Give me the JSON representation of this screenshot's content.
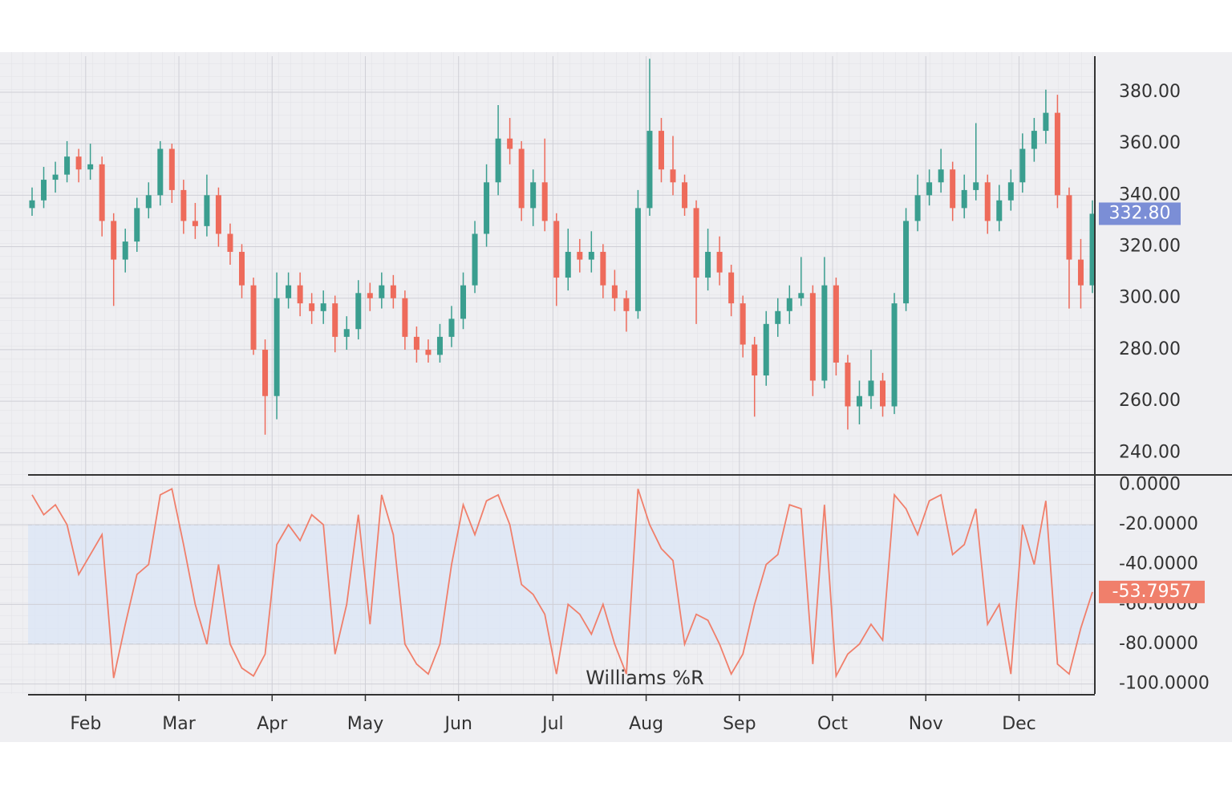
{
  "chart_data": [
    {
      "type": "candlestick",
      "xlim": [
        0,
        91
      ],
      "ylim": [
        232,
        394
      ],
      "yticks": [
        {
          "value": 240,
          "label": "240.00"
        },
        {
          "value": 260,
          "label": "260.00"
        },
        {
          "value": 280,
          "label": "280.00"
        },
        {
          "value": 300,
          "label": "300.00"
        },
        {
          "value": 320,
          "label": "320.00"
        },
        {
          "value": 340,
          "label": "340.00"
        },
        {
          "value": 360,
          "label": "360.00"
        },
        {
          "value": 380,
          "label": "380.00"
        }
      ],
      "up_color": "#3a9e8f",
      "down_color": "#ee6b5b",
      "tag_color": "#7b8ed6",
      "open": [
        335,
        338,
        346,
        348,
        355,
        350,
        352,
        330,
        315,
        322,
        335,
        340,
        358,
        342,
        330,
        328,
        340,
        325,
        318,
        305,
        280,
        262,
        300,
        305,
        298,
        295,
        298,
        285,
        288,
        302,
        300,
        305,
        300,
        285,
        280,
        278,
        285,
        292,
        305,
        325,
        345,
        362,
        358,
        335,
        345,
        330,
        308,
        318,
        315,
        318,
        305,
        300,
        295,
        335,
        365,
        350,
        345,
        335,
        308,
        318,
        310,
        298,
        282,
        270,
        290,
        295,
        300,
        302,
        268,
        305,
        275,
        258,
        262,
        268,
        258,
        298,
        330,
        340,
        345,
        350,
        335,
        342,
        345,
        330,
        338,
        345,
        358,
        365,
        372,
        340,
        315,
        305
      ],
      "high": [
        343,
        351,
        353,
        361,
        358,
        360,
        355,
        333,
        327,
        339,
        345,
        361,
        360,
        346,
        337,
        348,
        343,
        329,
        321,
        308,
        284,
        310,
        310,
        310,
        302,
        303,
        301,
        293,
        307,
        306,
        310,
        309,
        303,
        289,
        284,
        290,
        297,
        310,
        330,
        352,
        375,
        370,
        361,
        350,
        362,
        333,
        327,
        323,
        326,
        321,
        311,
        303,
        342,
        393,
        370,
        363,
        348,
        338,
        327,
        324,
        313,
        301,
        285,
        295,
        300,
        305,
        316,
        305,
        316,
        308,
        278,
        268,
        280,
        271,
        302,
        335,
        348,
        350,
        358,
        353,
        348,
        368,
        348,
        344,
        350,
        364,
        370,
        381,
        379,
        343,
        323,
        338
      ],
      "low": [
        332,
        335,
        341,
        345,
        345,
        346,
        324,
        297,
        310,
        318,
        331,
        336,
        337,
        325,
        323,
        324,
        320,
        313,
        300,
        278,
        247,
        253,
        296,
        293,
        290,
        290,
        279,
        280,
        284,
        295,
        296,
        296,
        280,
        275,
        275,
        275,
        281,
        288,
        302,
        320,
        340,
        352,
        330,
        328,
        326,
        297,
        303,
        310,
        310,
        300,
        295,
        287,
        292,
        332,
        345,
        340,
        332,
        290,
        303,
        305,
        293,
        277,
        254,
        266,
        285,
        290,
        297,
        262,
        265,
        270,
        249,
        251,
        257,
        254,
        255,
        295,
        326,
        336,
        341,
        330,
        331,
        338,
        325,
        326,
        334,
        341,
        353,
        360,
        335,
        296,
        296,
        302
      ],
      "close": [
        338,
        346,
        348,
        355,
        350,
        352,
        330,
        315,
        322,
        335,
        340,
        358,
        342,
        330,
        328,
        340,
        325,
        318,
        305,
        280,
        262,
        300,
        305,
        298,
        295,
        298,
        285,
        288,
        302,
        300,
        305,
        300,
        285,
        280,
        278,
        285,
        292,
        305,
        325,
        345,
        362,
        358,
        335,
        345,
        330,
        308,
        318,
        315,
        318,
        305,
        300,
        295,
        335,
        365,
        350,
        345,
        335,
        308,
        318,
        310,
        298,
        282,
        270,
        290,
        295,
        300,
        302,
        268,
        305,
        275,
        258,
        262,
        268,
        258,
        298,
        330,
        340,
        345,
        350,
        335,
        342,
        345,
        330,
        338,
        345,
        358,
        365,
        372,
        340,
        315,
        305,
        332.8
      ],
      "last_close_label": "332.80"
    },
    {
      "type": "line",
      "title": "Williams %R",
      "xlim": [
        0,
        91
      ],
      "ylim": [
        -105,
        5
      ],
      "yticks": [
        {
          "value": 0,
          "label": "0.0000"
        },
        {
          "value": -20,
          "label": "-20.0000"
        },
        {
          "value": -40,
          "label": "-40.0000"
        },
        {
          "value": -60,
          "label": "-60.0000"
        },
        {
          "value": -80,
          "label": "-80.0000"
        },
        {
          "value": -100,
          "label": "-100.0000"
        }
      ],
      "xticks": [
        {
          "value": 4.6,
          "label": "Feb"
        },
        {
          "value": 12.6,
          "label": "Mar"
        },
        {
          "value": 20.6,
          "label": "Apr"
        },
        {
          "value": 28.6,
          "label": "May"
        },
        {
          "value": 36.6,
          "label": "Jun"
        },
        {
          "value": 44.7,
          "label": "Jul"
        },
        {
          "value": 52.7,
          "label": "Aug"
        },
        {
          "value": 60.7,
          "label": "Sep"
        },
        {
          "value": 68.7,
          "label": "Oct"
        },
        {
          "value": 76.7,
          "label": "Nov"
        },
        {
          "value": 84.7,
          "label": "Dec"
        }
      ],
      "band": [
        -80,
        -20
      ],
      "band_color": "#dce6f5",
      "color": "#f07f6b",
      "values": [
        -5,
        -15,
        -10,
        -20,
        -45,
        -35,
        -25,
        -97,
        -70,
        -45,
        -40,
        -5,
        -2,
        -30,
        -60,
        -80,
        -40,
        -80,
        -92,
        -96,
        -85,
        -30,
        -20,
        -28,
        -15,
        -20,
        -85,
        -60,
        -15,
        -70,
        -5,
        -25,
        -80,
        -90,
        -95,
        -80,
        -40,
        -10,
        -25,
        -8,
        -5,
        -20,
        -50,
        -55,
        -65,
        -95,
        -60,
        -65,
        -75,
        -60,
        -80,
        -95,
        -2,
        -20,
        -32,
        -38,
        -80,
        -65,
        -68,
        -80,
        -95,
        -85,
        -60,
        -40,
        -35,
        -10,
        -12,
        -90,
        -10,
        -96,
        -85,
        -80,
        -70,
        -78,
        -5,
        -12,
        -25,
        -8,
        -5,
        -35,
        -30,
        -12,
        -70,
        -60,
        -95,
        -20,
        -40,
        -8,
        -90,
        -95,
        -72,
        -53.7957
      ]
    }
  ]
}
